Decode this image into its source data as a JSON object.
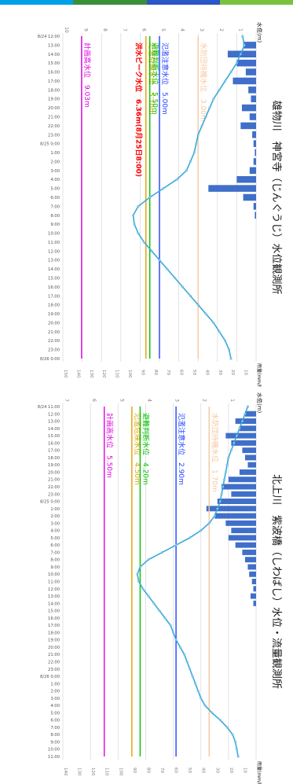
{
  "header_bar": {
    "colors": [
      "#00a0e9",
      "#3b8f3b",
      "#2a56c6",
      "#7ac142"
    ]
  },
  "charts": [
    {
      "id": "mono",
      "title": "雄物川　神宮寺（じんぐうじ）水位観測所",
      "water_axis_label": "水位(m)",
      "rain_axis_label": "雨量(mm/h)",
      "water_ticks": [
        "10",
        "9",
        "8",
        "7",
        "6",
        "5",
        "4",
        "3",
        "2",
        "1",
        "0"
      ],
      "rain_ticks": [
        "0",
        "10",
        "20",
        "30",
        "40",
        "50",
        "60",
        "70",
        "80",
        "90",
        "100",
        "110",
        "120",
        "130",
        "140",
        "150"
      ],
      "time_labels": [
        "8/24 12:00",
        "13:00",
        "14:00",
        "15:00",
        "16:00",
        "17:00",
        "18:00",
        "19:00",
        "20:00",
        "21:00",
        "22:00",
        "23:00",
        "8/25 0:00",
        "1:00",
        "2:00",
        "3:00",
        "4:00",
        "5:00",
        "6:00",
        "7:00",
        "8:00",
        "9:00",
        "10:00",
        "11:00",
        "12:00",
        "13:00",
        "14:00",
        "15:00",
        "16:00",
        "17:00",
        "18:00",
        "19:00",
        "20:00",
        "21:00",
        "22:00",
        "23:00",
        "8/26 0:00"
      ],
      "levels": [
        {
          "text": "計画高水位　9.03m",
          "value": 9.03,
          "color": "#e000e0",
          "bold": false
        },
        {
          "text": "洪水ピーク水位　6.36m(8月25日8:00)",
          "value": 6.36,
          "color": "#ff0000",
          "bold": true
        },
        {
          "text": "氾濫危険水位　5.70m",
          "value": 5.7,
          "color": "#e0a000",
          "bold": false
        },
        {
          "text": "避難判断水位　5.50m",
          "value": 5.5,
          "color": "#00c000",
          "bold": false
        },
        {
          "text": "氾濫注意水位　5.00m",
          "value": 5.0,
          "color": "#2040ff",
          "bold": false
        },
        {
          "text": "水防団待機水位　3.00m",
          "value": 3.0,
          "color": "#f4c8a0",
          "bold": false
        }
      ]
    },
    {
      "id": "kitakami",
      "title": "北上川　紫波橋（しわばし）水位・流量観測所",
      "water_axis_label": "水位(m)",
      "rain_axis_label": "雨量(mm/h)",
      "water_ticks": [
        "7",
        "6",
        "5",
        "4",
        "3",
        "2",
        "1",
        "0"
      ],
      "rain_ticks": [
        "0",
        "10",
        "20",
        "30",
        "40",
        "50",
        "60",
        "70",
        "80",
        "90",
        "100",
        "110",
        "120",
        "130",
        "140"
      ],
      "time_labels": [
        "8/24 11:00",
        "12:00",
        "13:00",
        "14:00",
        "15:00",
        "16:00",
        "17:00",
        "18:00",
        "19:00",
        "20:00",
        "21:00",
        "22:00",
        "23:00",
        "8/25 0:00",
        "1:00",
        "2:00",
        "3:00",
        "4:00",
        "5:00",
        "6:00",
        "7:00",
        "8:00",
        "9:00",
        "10:00",
        "11:00",
        "12:00",
        "13:00",
        "14:00",
        "15:00",
        "16:00",
        "17:00",
        "18:00",
        "19:00",
        "20:00",
        "21:00",
        "22:00",
        "23:00",
        "8/26 0:00",
        "1:00",
        "2:00",
        "3:00",
        "4:00",
        "5:00",
        "6:00",
        "7:00",
        "8:00",
        "9:00",
        "10:00",
        "11:00"
      ],
      "levels": [
        {
          "text": "計画高水位　5.50m",
          "value": 5.5,
          "color": "#e000e0",
          "bold": false
        },
        {
          "text": "氾濫危険水位　4.50m",
          "value": 4.5,
          "color": "#e0a000",
          "bold": false
        },
        {
          "text": "避難判断水位　4.20m",
          "value": 4.2,
          "color": "#00c000",
          "bold": false
        },
        {
          "text": "氾濫注意水位　2.90m",
          "value": 2.9,
          "color": "#2040ff",
          "bold": false
        },
        {
          "text": "水防団待機水位　1.70m",
          "value": 1.7,
          "color": "#f4c8a0",
          "bold": false
        }
      ]
    }
  ],
  "chart_data": [
    {
      "type": "line",
      "title": "雄物川　神宮寺（じんぐうじ）水位観測所",
      "x_axis": "time",
      "x": [
        "8/24 12:00",
        "13:00",
        "14:00",
        "15:00",
        "16:00",
        "17:00",
        "18:00",
        "19:00",
        "20:00",
        "21:00",
        "22:00",
        "23:00",
        "8/25 0:00",
        "1:00",
        "2:00",
        "3:00",
        "4:00",
        "5:00",
        "6:00",
        "7:00",
        "8:00",
        "9:00",
        "10:00",
        "11:00",
        "12:00",
        "13:00",
        "14:00",
        "15:00",
        "16:00",
        "17:00",
        "18:00",
        "19:00",
        "20:00",
        "21:00",
        "22:00",
        "23:00",
        "8/26 0:00"
      ],
      "ylabel": "水位(m)",
      "ylim": [
        0,
        10
      ],
      "y2label": "雨量(mm/h)",
      "y2lim": [
        0,
        150
      ],
      "series": [
        {
          "name": "水位",
          "type": "line",
          "axis": "water",
          "color": "#3aa8d8",
          "values": [
            0.7,
            0.6,
            0.8,
            1.0,
            1.3,
            1.6,
            1.9,
            2.2,
            2.4,
            2.6,
            2.8,
            3.0,
            3.1,
            3.2,
            3.4,
            3.6,
            4.1,
            4.8,
            5.5,
            6.1,
            6.36,
            6.3,
            6.1,
            5.8,
            5.4,
            5.0,
            4.6,
            4.2,
            3.8,
            3.4,
            3.0,
            2.6,
            2.2,
            1.9,
            1.6,
            1.4,
            1.3
          ]
        },
        {
          "name": "雨量",
          "type": "bar",
          "axis": "rain",
          "color": "#3f6fc8",
          "values": [
            0,
            10,
            22,
            15,
            8,
            18,
            6,
            4,
            11,
            5,
            12,
            3,
            2,
            1,
            2,
            5,
            15,
            37,
            10,
            2,
            1,
            0,
            0,
            0,
            0,
            0,
            0,
            0,
            0,
            0,
            0,
            0,
            0,
            0,
            0,
            0,
            0
          ]
        }
      ],
      "grid": true
    },
    {
      "type": "line",
      "title": "北上川　紫波橋（しわばし）水位・流量観測所",
      "x_axis": "time",
      "x": [
        "8/24 11:00",
        "12:00",
        "13:00",
        "14:00",
        "15:00",
        "16:00",
        "17:00",
        "18:00",
        "19:00",
        "20:00",
        "21:00",
        "22:00",
        "23:00",
        "8/25 0:00",
        "1:00",
        "2:00",
        "3:00",
        "4:00",
        "5:00",
        "6:00",
        "7:00",
        "8:00",
        "9:00",
        "10:00",
        "11:00",
        "12:00",
        "13:00",
        "14:00",
        "15:00",
        "16:00",
        "17:00",
        "18:00",
        "19:00",
        "20:00",
        "21:00",
        "22:00",
        "23:00",
        "8/26 0:00",
        "1:00",
        "2:00",
        "3:00",
        "4:00",
        "5:00",
        "6:00",
        "7:00",
        "8:00",
        "9:00",
        "10:00",
        "11:00"
      ],
      "ylabel": "水位(m)",
      "ylim": [
        0,
        7
      ],
      "y2label": "雨量(mm/h)",
      "y2lim": [
        0,
        140
      ],
      "series": [
        {
          "name": "水位",
          "type": "line",
          "axis": "water",
          "color": "#3aa8d8",
          "values": [
            0.3,
            0.4,
            0.5,
            0.6,
            0.7,
            0.8,
            0.9,
            1.0,
            1.05,
            1.1,
            1.15,
            1.2,
            1.25,
            1.3,
            1.4,
            1.5,
            1.7,
            2.0,
            2.4,
            2.9,
            3.4,
            3.9,
            4.2,
            4.3,
            4.25,
            4.1,
            3.9,
            3.7,
            3.5,
            3.3,
            3.1,
            3.0,
            2.9,
            2.75,
            2.6,
            2.5,
            2.4,
            2.3,
            2.2,
            2.1,
            2.0,
            1.85,
            1.6,
            1.3,
            1.05,
            0.85,
            0.75,
            0.7,
            0.65
          ]
        },
        {
          "name": "雨量",
          "type": "bar",
          "axis": "rain",
          "color": "#3f6fc8",
          "values": [
            0,
            8,
            15,
            12,
            22,
            18,
            10,
            8,
            6,
            12,
            20,
            25,
            18,
            28,
            36,
            30,
            22,
            18,
            20,
            15,
            10,
            8,
            6,
            5,
            3,
            2,
            4,
            2,
            0,
            0,
            0,
            0,
            0,
            0,
            0,
            0,
            0,
            0,
            0,
            0,
            0,
            0,
            0,
            0,
            0,
            0,
            0,
            0,
            0
          ]
        }
      ],
      "grid": true
    }
  ]
}
